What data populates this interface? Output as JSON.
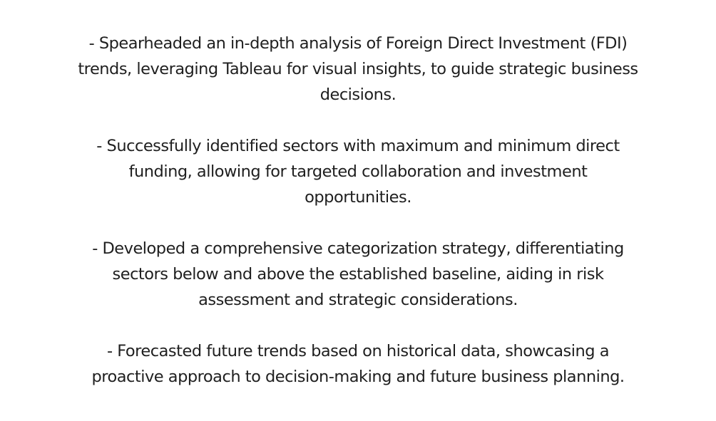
{
  "bullets": [
    {
      "lines": [
        "- Spearheaded an in-depth analysis of Foreign Direct Investment (FDI)",
        "trends, leveraging Tableau for visual insights, to guide strategic business",
        "decisions."
      ]
    },
    {
      "lines": [
        "- Successfully identified sectors with maximum and minimum direct",
        "funding, allowing for targeted collaboration and investment",
        "opportunities."
      ]
    },
    {
      "lines": [
        "- Developed a comprehensive categorization strategy, differentiating",
        "sectors below and above the established baseline, aiding in risk",
        "assessment and strategic considerations."
      ]
    },
    {
      "lines": [
        "- Forecasted future trends based on historical data, showcasing a",
        "proactive approach to decision-making and future business planning."
      ]
    }
  ]
}
